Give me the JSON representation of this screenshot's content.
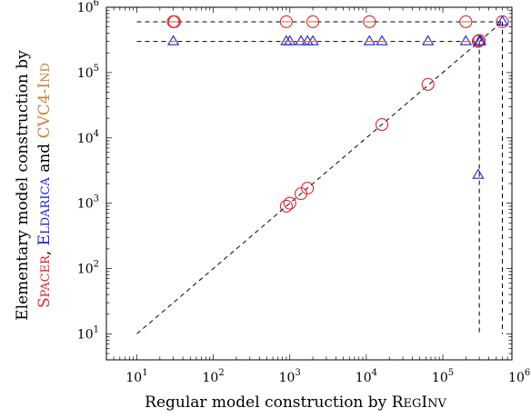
{
  "chart_data": {
    "type": "scatter",
    "xscale": "log",
    "yscale": "log",
    "xlim": [
      4,
      800000
    ],
    "ylim": [
      4,
      1000000
    ],
    "xticks": [
      {
        "base": "10",
        "exp": "1",
        "value": 10
      },
      {
        "base": "10",
        "exp": "2",
        "value": 100
      },
      {
        "base": "10",
        "exp": "3",
        "value": 1000
      },
      {
        "base": "10",
        "exp": "4",
        "value": 10000
      },
      {
        "base": "10",
        "exp": "5",
        "value": 100000
      },
      {
        "base": "10",
        "exp": "6",
        "value": 1000000
      }
    ],
    "yticks": [
      {
        "base": "10",
        "exp": "1",
        "value": 10
      },
      {
        "base": "10",
        "exp": "2",
        "value": 100
      },
      {
        "base": "10",
        "exp": "3",
        "value": 1000
      },
      {
        "base": "10",
        "exp": "4",
        "value": 10000
      },
      {
        "base": "10",
        "exp": "5",
        "value": 100000
      },
      {
        "base": "10",
        "exp": "6",
        "value": 1000000
      }
    ],
    "xlabel": {
      "prefix": "Regular model construction by ",
      "tool_main": "R",
      "tool_small": "EG",
      "tool_main2": "I",
      "tool_small2": "NV"
    },
    "ylabel": {
      "line1": "Elementary model construction by",
      "spacer": {
        "main": "S",
        "small": "PACER",
        "color": "#e8202a"
      },
      "sep1": ", ",
      "eldarica": {
        "main": "E",
        "small": "LDARICA",
        "color": "#2020e0"
      },
      "sep2": " and ",
      "cvc4": {
        "main": "CVC4-I",
        "small": "ND",
        "color": "#c8823c"
      }
    },
    "reference_lines": {
      "diagonal": [
        [
          10,
          10
        ],
        [
          600000,
          600000
        ]
      ],
      "timeout_y": 600000,
      "memout_y": 300000,
      "timeout_x": 600000,
      "memout_x": 300000,
      "color": "#000000",
      "dash": "dashed"
    },
    "series": [
      {
        "marker": "circle",
        "color": "#e8202a",
        "points": [
          [
            30,
            600000
          ],
          [
            31,
            600000
          ],
          [
            900,
            600000
          ],
          [
            2000,
            600000
          ],
          [
            11000,
            600000
          ],
          [
            200000,
            600000
          ],
          [
            600000,
            600000
          ],
          [
            64000,
            66000
          ],
          [
            16000,
            16000
          ],
          [
            1700,
            1700
          ],
          [
            1400,
            1400
          ],
          [
            1000,
            1000
          ],
          [
            900,
            900
          ],
          [
            290000,
            300000
          ],
          [
            300000,
            310000
          ]
        ]
      },
      {
        "marker": "triangle",
        "color": "#2020e0",
        "points": [
          [
            30,
            300000
          ],
          [
            900,
            300000
          ],
          [
            1000,
            300000
          ],
          [
            1400,
            300000
          ],
          [
            1700,
            300000
          ],
          [
            2000,
            300000
          ],
          [
            11000,
            300000
          ],
          [
            16000,
            300000
          ],
          [
            64000,
            300000
          ],
          [
            200000,
            300000
          ],
          [
            300000,
            300000
          ],
          [
            310000,
            300000
          ],
          [
            290000,
            2700
          ],
          [
            600000,
            600000
          ]
        ]
      },
      {
        "marker": "minus",
        "color": "#c8823c",
        "points": [
          [
            30,
            600000
          ],
          [
            900,
            600000
          ],
          [
            2000,
            600000
          ],
          [
            11000,
            600000
          ],
          [
            200000,
            600000
          ],
          [
            30,
            300000
          ],
          [
            900,
            300000
          ],
          [
            1000,
            300000
          ],
          [
            1400,
            300000
          ],
          [
            1700,
            300000
          ],
          [
            2000,
            300000
          ],
          [
            11000,
            300000
          ],
          [
            16000,
            300000
          ],
          [
            64000,
            300000
          ],
          [
            200000,
            300000
          ],
          [
            300000,
            300000
          ]
        ]
      }
    ]
  }
}
